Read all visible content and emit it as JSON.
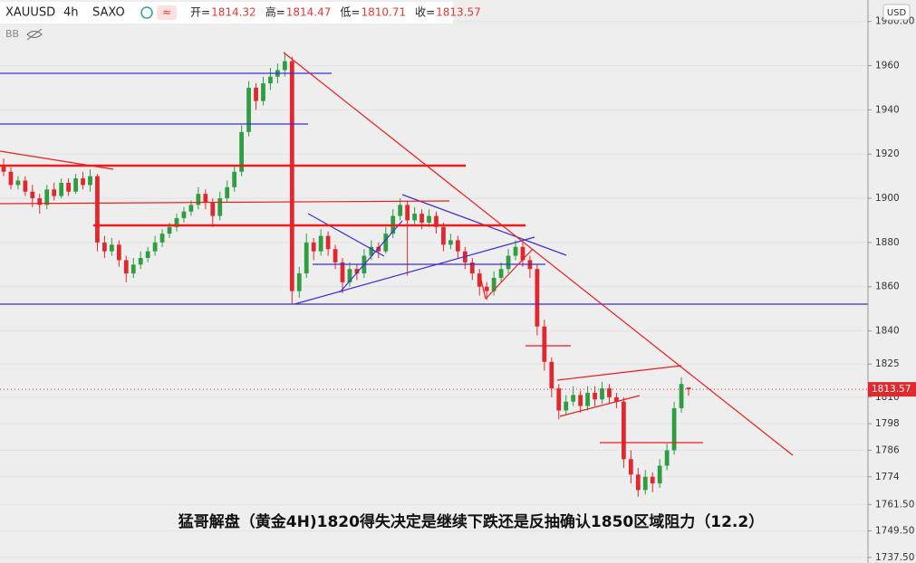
{
  "header": {
    "symbol": "XAUUSD",
    "interval": "4h",
    "source": "SAXO",
    "indicator": "BB",
    "ohlc": [
      {
        "label": "开=",
        "value": 1814.32
      },
      {
        "label": "高=",
        "value": 1814.47
      },
      {
        "label": "低=",
        "value": 1810.71
      },
      {
        "label": "收=",
        "value": 1813.57
      }
    ]
  },
  "currency": "USD",
  "caption": "猛哥解盘（黄金4H)1820得失决定是继续下跌还是反抽确认1850区域阻力（12.2）",
  "chart_data": {
    "type": "candlestick",
    "up_color": "#2e9e40",
    "down_color": "#e0282e",
    "grid": true,
    "last_price": 1813.57,
    "ylim": [
      1735,
      1989.7
    ],
    "yticks": [
      {
        "value": 1980,
        "label": "1980.00"
      },
      1960,
      1940,
      1920,
      1900,
      1880,
      1860,
      1840,
      1825,
      1810,
      1798,
      1786,
      1774,
      {
        "value": 1761.5,
        "label": "1761.50"
      },
      {
        "value": 1749.5,
        "label": "1749.50"
      },
      {
        "value": 1737.5,
        "label": "1737.50"
      }
    ],
    "candles": [
      [
        1915,
        1918,
        1910,
        1912
      ],
      [
        1912,
        1914,
        1904,
        1906
      ],
      [
        1906,
        1910,
        1904,
        1908
      ],
      [
        1908,
        1910,
        1901,
        1903
      ],
      [
        1903,
        1906,
        1896,
        1900
      ],
      [
        1900,
        1902,
        1893,
        1897
      ],
      [
        1897,
        1906,
        1895,
        1904
      ],
      [
        1904,
        1907,
        1899,
        1901
      ],
      [
        1901,
        1909,
        1900,
        1907
      ],
      [
        1907,
        1909,
        1901,
        1903
      ],
      [
        1903,
        1911,
        1902,
        1909
      ],
      [
        1909,
        1912,
        1904,
        1906
      ],
      [
        1906,
        1913,
        1903,
        1910
      ],
      [
        1910,
        1911,
        1876,
        1880
      ],
      [
        1880,
        1883,
        1873,
        1876
      ],
      [
        1876,
        1882,
        1874,
        1879
      ],
      [
        1879,
        1881,
        1869,
        1872
      ],
      [
        1872,
        1874,
        1862,
        1866
      ],
      [
        1866,
        1873,
        1864,
        1870
      ],
      [
        1870,
        1876,
        1868,
        1873
      ],
      [
        1873,
        1878,
        1871,
        1876
      ],
      [
        1876,
        1883,
        1874,
        1880
      ],
      [
        1880,
        1886,
        1878,
        1884
      ],
      [
        1884,
        1889,
        1882,
        1887
      ],
      [
        1887,
        1893,
        1885,
        1891
      ],
      [
        1891,
        1896,
        1889,
        1894
      ],
      [
        1894,
        1899,
        1892,
        1897
      ],
      [
        1897,
        1905,
        1895,
        1902
      ],
      [
        1902,
        1904,
        1895,
        1898
      ],
      [
        1898,
        1900,
        1887,
        1892
      ],
      [
        1892,
        1903,
        1890,
        1900
      ],
      [
        1900,
        1908,
        1898,
        1905
      ],
      [
        1905,
        1915,
        1903,
        1912
      ],
      [
        1912,
        1933,
        1910,
        1930
      ],
      [
        1930,
        1953,
        1928,
        1950
      ],
      [
        1950,
        1952,
        1940,
        1944
      ],
      [
        1944,
        1955,
        1942,
        1952
      ],
      [
        1952,
        1959,
        1949,
        1955
      ],
      [
        1955,
        1961,
        1952,
        1958
      ],
      [
        1958,
        1966,
        1955,
        1962
      ],
      [
        1962,
        1964,
        1852,
        1858
      ],
      [
        1858,
        1869,
        1855,
        1866
      ],
      [
        1866,
        1884,
        1864,
        1880
      ],
      [
        1880,
        1882,
        1872,
        1876
      ],
      [
        1876,
        1886,
        1874,
        1883
      ],
      [
        1883,
        1885,
        1874,
        1877
      ],
      [
        1877,
        1879,
        1868,
        1871
      ],
      [
        1871,
        1873,
        1857,
        1862
      ],
      [
        1862,
        1871,
        1860,
        1868
      ],
      [
        1868,
        1870,
        1863,
        1866
      ],
      [
        1866,
        1877,
        1864,
        1874
      ],
      [
        1874,
        1881,
        1872,
        1878
      ],
      [
        1878,
        1880,
        1873,
        1876
      ],
      [
        1876,
        1887,
        1875,
        1884
      ],
      [
        1884,
        1895,
        1882,
        1892
      ],
      [
        1892,
        1900,
        1890,
        1897
      ],
      [
        1897,
        1899,
        1865,
        1890
      ],
      [
        1890,
        1896,
        1888,
        1893
      ],
      [
        1893,
        1895,
        1886,
        1889
      ],
      [
        1889,
        1895,
        1887,
        1892
      ],
      [
        1892,
        1894,
        1884,
        1887
      ],
      [
        1887,
        1889,
        1876,
        1879
      ],
      [
        1879,
        1884,
        1877,
        1881
      ],
      [
        1881,
        1883,
        1873,
        1876
      ],
      [
        1876,
        1878,
        1868,
        1871
      ],
      [
        1871,
        1873,
        1863,
        1866
      ],
      [
        1866,
        1868,
        1856,
        1860
      ],
      [
        1860,
        1862,
        1854,
        1858
      ],
      [
        1858,
        1867,
        1856,
        1864
      ],
      [
        1864,
        1871,
        1862,
        1868
      ],
      [
        1868,
        1877,
        1866,
        1874
      ],
      [
        1874,
        1881,
        1872,
        1878
      ],
      [
        1878,
        1880,
        1869,
        1872
      ],
      [
        1872,
        1874,
        1864,
        1868
      ],
      [
        1868,
        1870,
        1838,
        1842
      ],
      [
        1842,
        1845,
        1822,
        1826
      ],
      [
        1826,
        1828,
        1810,
        1814
      ],
      [
        1814,
        1816,
        1800,
        1804
      ],
      [
        1804,
        1811,
        1802,
        1808
      ],
      [
        1808,
        1815,
        1806,
        1811
      ],
      [
        1811,
        1813,
        1803,
        1806
      ],
      [
        1806,
        1815,
        1804,
        1812
      ],
      [
        1812,
        1815,
        1806,
        1809
      ],
      [
        1809,
        1817,
        1807,
        1814
      ],
      [
        1814,
        1816,
        1807,
        1810
      ],
      [
        1810,
        1812,
        1805,
        1808
      ],
      [
        1808,
        1810,
        1778,
        1782
      ],
      [
        1782,
        1786,
        1771,
        1775
      ],
      [
        1775,
        1778,
        1765,
        1768
      ],
      [
        1768,
        1777,
        1766,
        1774
      ],
      [
        1774,
        1776,
        1767,
        1771
      ],
      [
        1771,
        1782,
        1769,
        1779
      ],
      [
        1779,
        1789,
        1777,
        1786
      ],
      [
        1786,
        1808,
        1784,
        1805
      ],
      [
        1805,
        1819,
        1803,
        1816
      ],
      [
        1814.32,
        1814.47,
        1810.71,
        1813.57
      ]
    ]
  }
}
